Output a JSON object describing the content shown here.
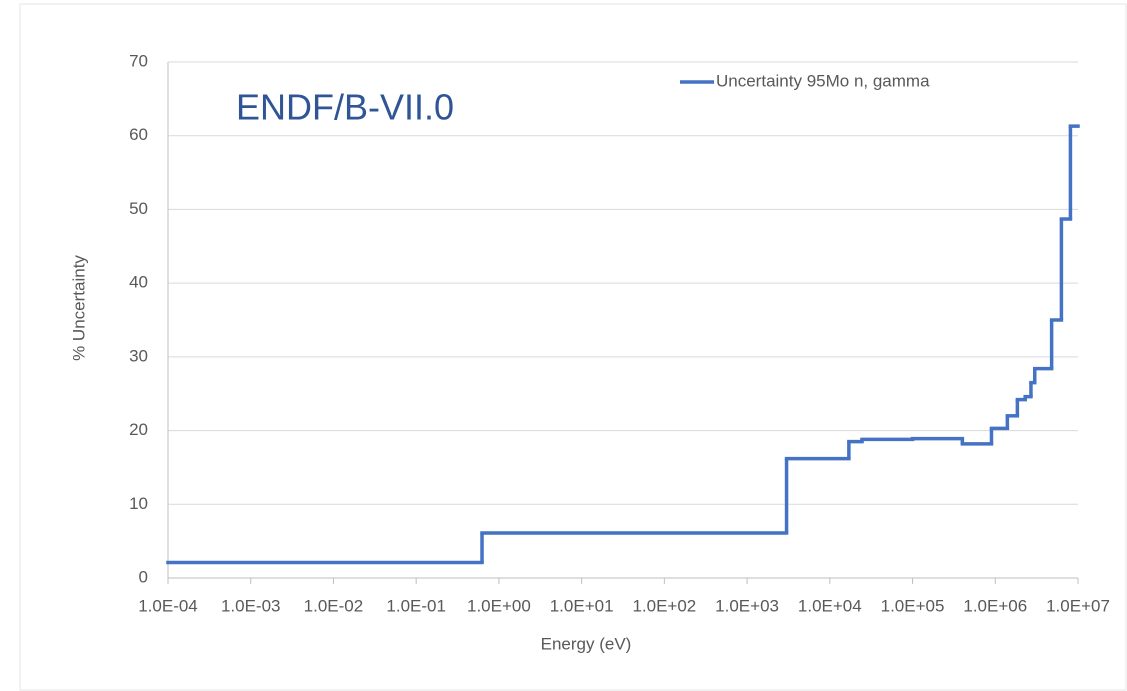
{
  "chart_data": {
    "type": "line",
    "step": "post",
    "annotation": "ENDF/B-VII.0",
    "xlabel": "Energy (eV)",
    "ylabel": "% Uncertainty",
    "xscale": "log",
    "grid": true,
    "legend": "top-right",
    "x": [
      0.0001,
      0.625,
      3000,
      17000,
      24500,
      100000,
      400000,
      900000,
      1400000,
      1850000,
      2300000,
      2700000,
      3000000,
      4800000,
      6300000,
      8100000
    ],
    "series": [
      {
        "name": "Uncertainty 95Mo n, gamma",
        "color": "#4472c4",
        "values": [
          2.1,
          6.1,
          16.2,
          18.5,
          18.8,
          18.9,
          18.2,
          20.3,
          22,
          24.2,
          24.6,
          26.5,
          28.4,
          35,
          48.7,
          61.3
        ]
      }
    ],
    "xlim": [
      0.0001,
      10000000
    ],
    "xticks": [
      {
        "value": 0.0001,
        "label": "1.0E-04"
      },
      {
        "value": 0.001,
        "label": "1.0E-03"
      },
      {
        "value": 0.01,
        "label": "1.0E-02"
      },
      {
        "value": 0.1,
        "label": "1.0E-01"
      },
      {
        "value": 1,
        "label": "1.0E+00"
      },
      {
        "value": 10,
        "label": "1.0E+01"
      },
      {
        "value": 100,
        "label": "1.0E+02"
      },
      {
        "value": 1000,
        "label": "1.0E+03"
      },
      {
        "value": 10000,
        "label": "1.0E+04"
      },
      {
        "value": 100000,
        "label": "1.0E+05"
      },
      {
        "value": 1000000,
        "label": "1.0E+06"
      },
      {
        "value": 10000000,
        "label": "1.0E+07"
      }
    ],
    "ylim": [
      0,
      70
    ],
    "yticks": [
      0,
      10,
      20,
      30,
      40,
      50,
      60,
      70
    ]
  }
}
